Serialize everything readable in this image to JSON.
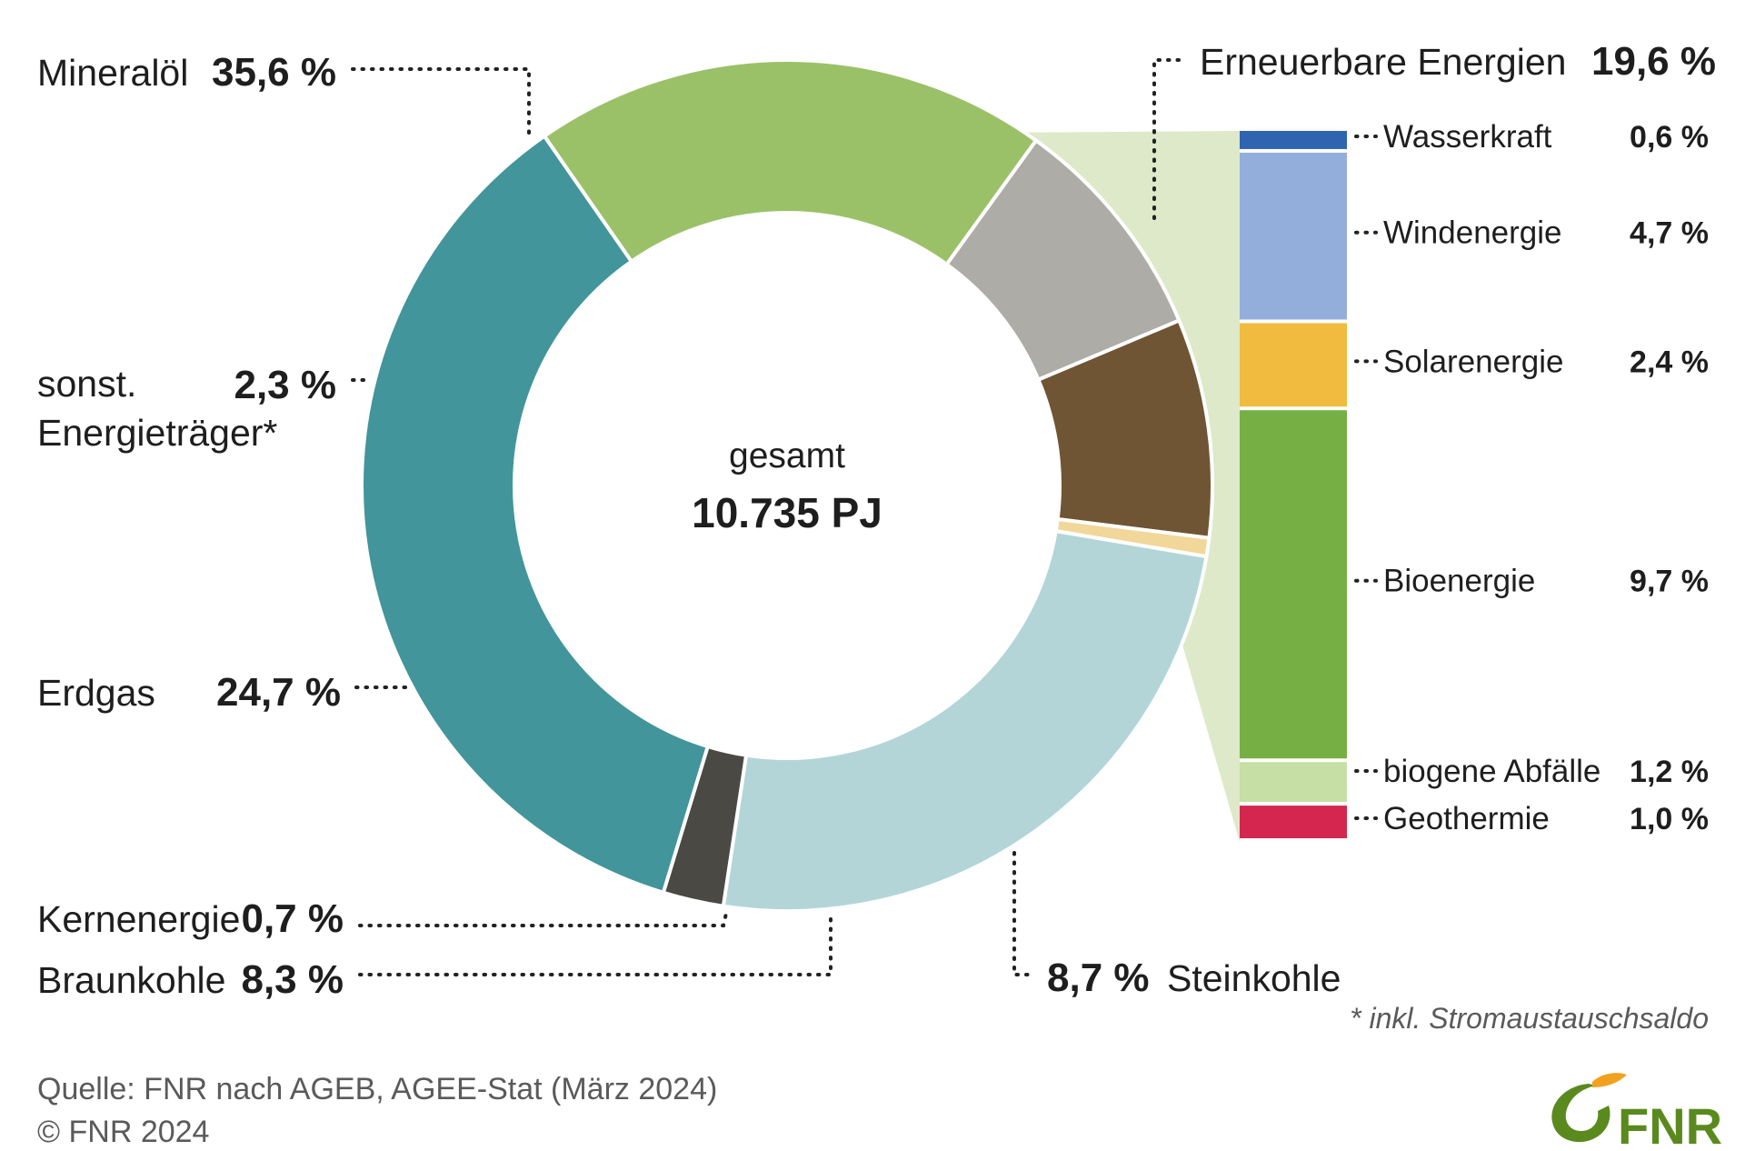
{
  "chart_data": {
    "type": "pie",
    "center": {
      "label": "gesamt",
      "value": "10.735 PJ"
    },
    "slices": [
      {
        "name": "Erneuerbare Energien",
        "value": 19.6,
        "value_label": "19,6 %",
        "color": "#9bc168"
      },
      {
        "name": "Steinkohle",
        "value": 8.7,
        "value_label": "8,7 %",
        "color": "#aeaca6"
      },
      {
        "name": "Braunkohle",
        "value": 8.3,
        "value_label": "8,3 %",
        "color": "#6f5533"
      },
      {
        "name": "Kernenergie",
        "value": 0.7,
        "value_label": "0,7 %",
        "color": "#f2d79a"
      },
      {
        "name": "Erdgas",
        "value": 24.7,
        "value_label": "24,7 %",
        "color": "#b3d5d8"
      },
      {
        "name": "sonst. Energieträger*",
        "value": 2.3,
        "value_label": "2,3 %",
        "color": "#4a4943",
        "label_lines": [
          "sonst.",
          "Energieträger*"
        ]
      },
      {
        "name": "Mineralöl",
        "value": 35.6,
        "value_label": "35,6 %",
        "color": "#42959a"
      }
    ],
    "breakdown": {
      "parent": "Erneuerbare Energien",
      "items": [
        {
          "name": "Wasserkraft",
          "value": 0.6,
          "value_label": "0,6 %",
          "color": "#2f64b0"
        },
        {
          "name": "Windenergie",
          "value": 4.7,
          "value_label": "4,7 %",
          "color": "#94aedb"
        },
        {
          "name": "Solarenergie",
          "value": 2.4,
          "value_label": "2,4 %",
          "color": "#f0bb3e"
        },
        {
          "name": "Bioenergie",
          "value": 9.7,
          "value_label": "9,7 %",
          "color": "#76b044"
        },
        {
          "name": "biogene Abfälle",
          "value": 1.2,
          "value_label": "1,2 %",
          "color": "#c5dfa5"
        },
        {
          "name": "Geothermie",
          "value": 1.0,
          "value_label": "1,0 %",
          "color": "#d4264f"
        }
      ]
    },
    "footnote": "* inkl. Stromaustauschsaldo"
  },
  "source": {
    "line1": "Quelle: FNR nach AGEB, AGEE-Stat (März 2024)",
    "line2": "© FNR 2024"
  },
  "logo": {
    "text": "FNR",
    "icon": "fnr-leaf-logo",
    "color": "#5a8a1e",
    "accent": "#f0a21e"
  },
  "colors": {
    "wedge_fill": "#dde9c8",
    "text": "#1e1e1e",
    "muted": "#5a5a5a"
  }
}
